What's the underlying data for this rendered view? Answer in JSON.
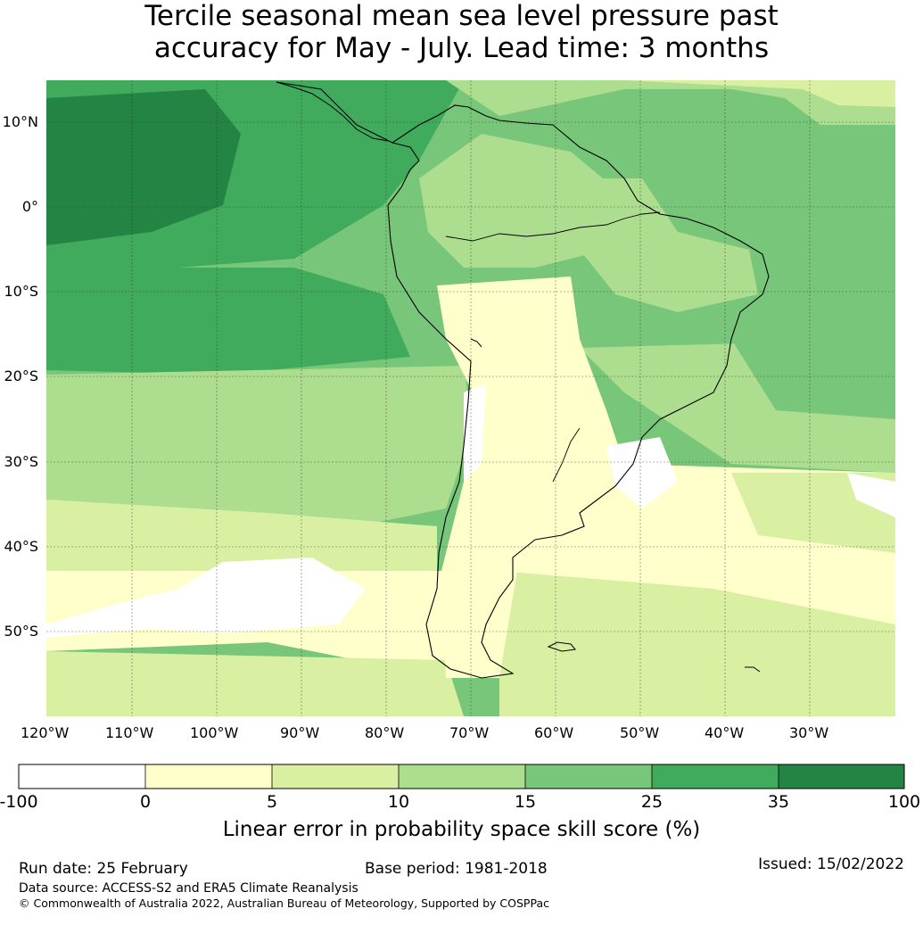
{
  "title": {
    "line1": "Tercile seasonal mean sea level pressure past",
    "line2": "accuracy for May - July. Lead time: 3 months"
  },
  "map": {
    "lat_labels": [
      "10°N",
      "0°",
      "10°S",
      "20°S",
      "30°S",
      "40°S",
      "50°S"
    ],
    "lon_labels": [
      "120°W",
      "110°W",
      "100°W",
      "90°W",
      "80°W",
      "70°W",
      "60°W",
      "50°W",
      "40°W",
      "30°W"
    ]
  },
  "colorbar": {
    "ticks": [
      "-100",
      "0",
      "5",
      "10",
      "15",
      "25",
      "35",
      "100"
    ],
    "colors": [
      "#ffffff",
      "#ffffcc",
      "#d9f0a3",
      "#addd8e",
      "#78c679",
      "#41ab5d",
      "#238443"
    ],
    "label": "Linear error in probability space skill score (%)"
  },
  "footer": {
    "run_date": "Run date: 25 February",
    "base_period": "Base period: 1981-2018",
    "issued": "Issued: 15/02/2022",
    "data_source": "Data source: ACCESS-S2 and ERA5 Climate Reanalysis",
    "copyright": "© Commonwealth of Australia 2022, Australian Bureau of Meteorology, Supported by COSPPac"
  }
}
